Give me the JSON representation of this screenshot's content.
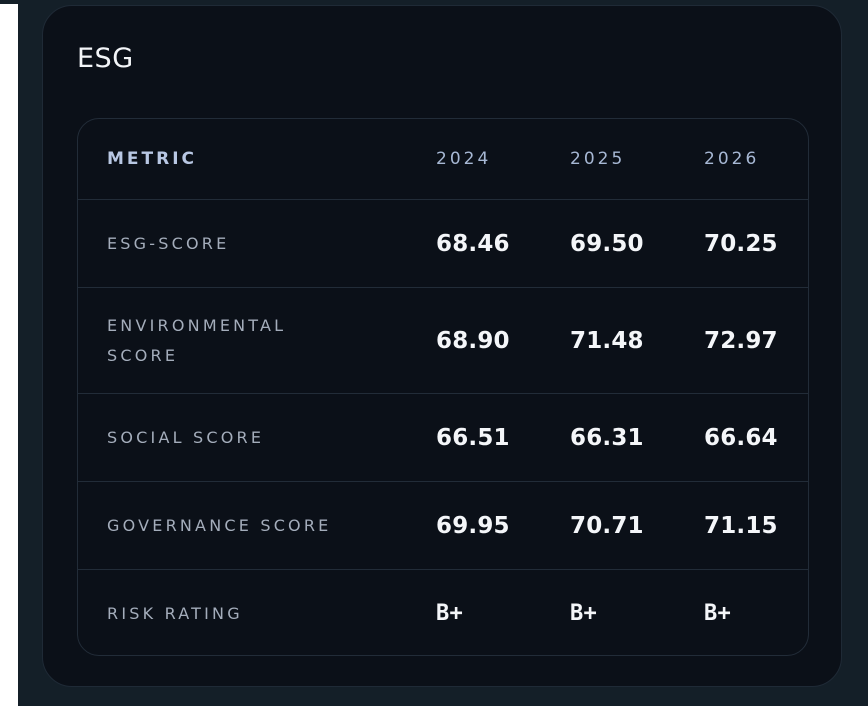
{
  "card": {
    "title": "ESG"
  },
  "table": {
    "headers": [
      "METRIC",
      "2024",
      "2025",
      "2026"
    ],
    "rows": [
      {
        "metric": "ESG-SCORE",
        "values": [
          "68.46",
          "69.50",
          "70.25"
        ]
      },
      {
        "metric": "ENVIRONMENTAL SCORE",
        "values": [
          "68.90",
          "71.48",
          "72.97"
        ]
      },
      {
        "metric": "SOCIAL SCORE",
        "values": [
          "66.51",
          "66.31",
          "66.64"
        ]
      },
      {
        "metric": "GOVERNANCE SCORE",
        "values": [
          "69.95",
          "70.71",
          "71.15"
        ]
      },
      {
        "metric": "RISK RATING",
        "values": [
          "B+",
          "B+",
          "B+"
        ]
      }
    ]
  },
  "colors": {
    "background": "#141f28",
    "card": "#0b1018",
    "border": "#222c38",
    "header_text": "#b8c7e3",
    "label_text": "#a4adbb",
    "value_text": "#f4f6f9"
  }
}
